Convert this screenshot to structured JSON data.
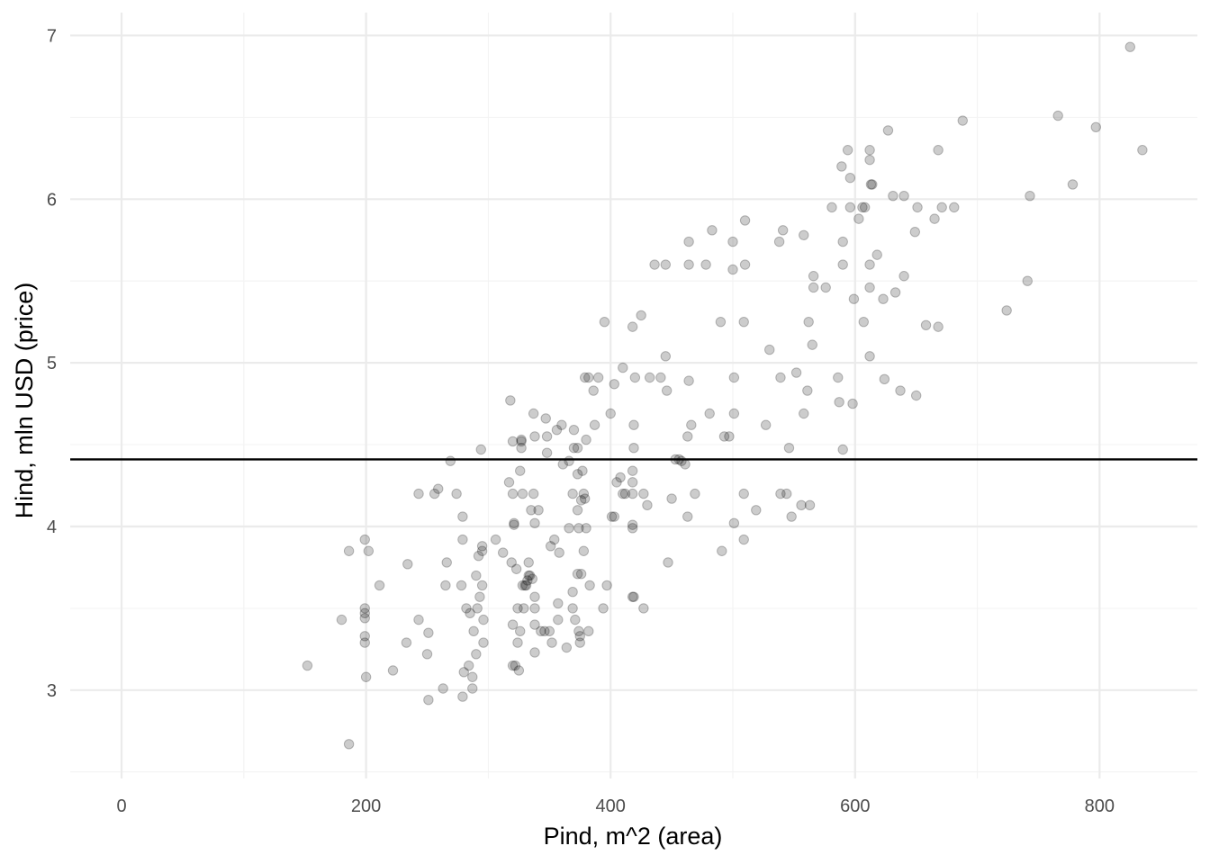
{
  "chart_data": {
    "type": "scatter",
    "title": "",
    "xlabel": "Pind, m^2 (area)",
    "ylabel": "Hind, mln USD (price)",
    "xlim": [
      -42,
      880
    ],
    "ylim": [
      2.46,
      7.14
    ],
    "x_major_ticks": [
      0,
      200,
      400,
      600,
      800
    ],
    "x_minor_ticks": [
      100,
      300,
      500,
      700
    ],
    "y_major_ticks": [
      3,
      4,
      5,
      6,
      7
    ],
    "y_minor_ticks": [
      2.5,
      3.5,
      4.5,
      5.5,
      6.5
    ],
    "x_tick_labels": [
      "0",
      "200",
      "400",
      "600",
      "800"
    ],
    "y_tick_labels": [
      "3",
      "4",
      "5",
      "6",
      "7"
    ],
    "grid": true,
    "legend": "none",
    "hline": {
      "y": 4.41,
      "color": "#000000"
    },
    "point_color": "#000000",
    "point_opacity": 0.2,
    "points": [
      [
        152,
        3.15
      ],
      [
        180,
        3.43
      ],
      [
        186,
        3.85
      ],
      [
        186,
        2.67
      ],
      [
        199,
        3.5
      ],
      [
        199,
        3.47
      ],
      [
        199,
        3.44
      ],
      [
        199,
        3.33
      ],
      [
        199,
        3.29
      ],
      [
        199,
        3.92
      ],
      [
        200,
        3.08
      ],
      [
        202,
        3.85
      ],
      [
        211,
        3.64
      ],
      [
        222,
        3.12
      ],
      [
        233,
        3.29
      ],
      [
        234,
        3.77
      ],
      [
        243,
        4.2
      ],
      [
        243,
        3.43
      ],
      [
        250,
        3.22
      ],
      [
        251,
        3.35
      ],
      [
        251,
        2.94
      ],
      [
        256,
        4.2
      ],
      [
        259,
        4.23
      ],
      [
        263,
        3.01
      ],
      [
        265,
        3.64
      ],
      [
        266,
        3.78
      ],
      [
        269,
        4.4
      ],
      [
        274,
        4.2
      ],
      [
        278,
        3.64
      ],
      [
        279,
        4.06
      ],
      [
        279,
        3.92
      ],
      [
        280,
        3.11
      ],
      [
        279,
        2.96
      ],
      [
        282,
        3.5
      ],
      [
        284,
        3.15
      ],
      [
        285,
        3.47
      ],
      [
        287,
        3.08
      ],
      [
        287,
        3.01
      ],
      [
        288,
        3.36
      ],
      [
        290,
        3.22
      ],
      [
        290,
        3.7
      ],
      [
        291,
        3.5
      ],
      [
        292,
        3.82
      ],
      [
        293,
        3.57
      ],
      [
        294,
        4.47
      ],
      [
        295,
        3.64
      ],
      [
        295,
        3.88
      ],
      [
        295,
        3.85
      ],
      [
        296,
        3.43
      ],
      [
        296,
        3.29
      ],
      [
        306,
        3.92
      ],
      [
        312,
        3.84
      ],
      [
        317,
        4.27
      ],
      [
        318,
        4.77
      ],
      [
        319,
        3.78
      ],
      [
        320,
        4.52
      ],
      [
        320,
        4.2
      ],
      [
        320,
        3.4
      ],
      [
        320,
        3.15
      ],
      [
        321,
        4.02
      ],
      [
        321,
        4.01
      ],
      [
        322,
        3.15
      ],
      [
        323,
        3.74
      ],
      [
        324,
        3.5
      ],
      [
        324,
        3.29
      ],
      [
        325,
        3.12
      ],
      [
        326,
        4.34
      ],
      [
        326,
        3.36
      ],
      [
        327,
        4.52
      ],
      [
        327,
        4.53
      ],
      [
        327,
        4.48
      ],
      [
        328,
        4.2
      ],
      [
        328,
        3.64
      ],
      [
        329,
        3.5
      ],
      [
        330,
        3.64
      ],
      [
        331,
        3.64
      ],
      [
        332,
        3.67
      ],
      [
        333,
        3.7
      ],
      [
        333,
        3.78
      ],
      [
        334,
        3.7
      ],
      [
        335,
        4.1
      ],
      [
        336,
        3.68
      ],
      [
        337,
        4.69
      ],
      [
        337,
        4.2
      ],
      [
        338,
        4.55
      ],
      [
        338,
        4.02
      ],
      [
        338,
        3.57
      ],
      [
        338,
        3.5
      ],
      [
        338,
        3.4
      ],
      [
        338,
        3.23
      ],
      [
        341,
        4.1
      ],
      [
        343,
        3.36
      ],
      [
        346,
        3.36
      ],
      [
        347,
        4.66
      ],
      [
        348,
        4.55
      ],
      [
        348,
        4.45
      ],
      [
        350,
        3.36
      ],
      [
        351,
        3.88
      ],
      [
        352,
        3.29
      ],
      [
        354,
        3.92
      ],
      [
        356,
        4.59
      ],
      [
        357,
        3.53
      ],
      [
        357,
        3.43
      ],
      [
        358,
        3.84
      ],
      [
        360,
        4.62
      ],
      [
        361,
        4.38
      ],
      [
        364,
        3.26
      ],
      [
        366,
        4.4
      ],
      [
        366,
        3.99
      ],
      [
        369,
        4.2
      ],
      [
        369,
        3.6
      ],
      [
        369,
        3.5
      ],
      [
        370,
        4.59
      ],
      [
        370,
        4.48
      ],
      [
        371,
        3.43
      ],
      [
        373,
        4.48
      ],
      [
        373,
        4.32
      ],
      [
        373,
        4.1
      ],
      [
        373,
        3.71
      ],
      [
        374,
        3.99
      ],
      [
        374,
        3.36
      ],
      [
        375,
        3.33
      ],
      [
        375,
        3.29
      ],
      [
        376,
        4.16
      ],
      [
        376,
        3.71
      ],
      [
        377,
        4.34
      ],
      [
        378,
        4.2
      ],
      [
        378,
        3.85
      ],
      [
        379,
        4.91
      ],
      [
        379,
        4.17
      ],
      [
        380,
        4.53
      ],
      [
        380,
        3.99
      ],
      [
        382,
        4.91
      ],
      [
        382,
        3.36
      ],
      [
        383,
        3.64
      ],
      [
        386,
        4.83
      ],
      [
        387,
        4.62
      ],
      [
        390,
        4.91
      ],
      [
        394,
        3.5
      ],
      [
        395,
        5.25
      ],
      [
        397,
        3.64
      ],
      [
        400,
        4.69
      ],
      [
        401,
        4.06
      ],
      [
        403,
        4.06
      ],
      [
        403,
        4.87
      ],
      [
        405,
        4.27
      ],
      [
        408,
        4.3
      ],
      [
        410,
        4.97
      ],
      [
        410,
        4.2
      ],
      [
        412,
        4.2
      ],
      [
        418,
        5.22
      ],
      [
        418,
        4.34
      ],
      [
        418,
        4.27
      ],
      [
        418,
        4.2
      ],
      [
        418,
        4.01
      ],
      [
        418,
        3.99
      ],
      [
        418,
        3.57
      ],
      [
        419,
        3.57
      ],
      [
        419,
        4.62
      ],
      [
        419,
        4.48
      ],
      [
        420,
        4.91
      ],
      [
        425,
        5.29
      ],
      [
        427,
        4.2
      ],
      [
        427,
        3.5
      ],
      [
        430,
        4.13
      ],
      [
        432,
        4.91
      ],
      [
        436,
        5.6
      ],
      [
        441,
        4.91
      ],
      [
        445,
        5.6
      ],
      [
        445,
        5.04
      ],
      [
        446,
        4.83
      ],
      [
        447,
        3.78
      ],
      [
        450,
        4.17
      ],
      [
        453,
        4.41
      ],
      [
        456,
        4.41
      ],
      [
        458,
        4.4
      ],
      [
        461,
        4.38
      ],
      [
        463,
        4.55
      ],
      [
        463,
        4.06
      ],
      [
        464,
        4.89
      ],
      [
        464,
        5.74
      ],
      [
        464,
        5.6
      ],
      [
        466,
        4.62
      ],
      [
        469,
        4.2
      ],
      [
        478,
        5.6
      ],
      [
        481,
        4.69
      ],
      [
        483,
        5.81
      ],
      [
        490,
        5.25
      ],
      [
        491,
        3.85
      ],
      [
        493,
        4.55
      ],
      [
        497,
        4.55
      ],
      [
        500,
        5.74
      ],
      [
        500,
        5.57
      ],
      [
        501,
        4.91
      ],
      [
        501,
        4.69
      ],
      [
        501,
        4.02
      ],
      [
        509,
        5.25
      ],
      [
        509,
        4.2
      ],
      [
        509,
        3.92
      ],
      [
        510,
        5.87
      ],
      [
        510,
        5.6
      ],
      [
        519,
        4.1
      ],
      [
        527,
        4.62
      ],
      [
        530,
        5.08
      ],
      [
        538,
        5.74
      ],
      [
        539,
        4.91
      ],
      [
        539,
        4.2
      ],
      [
        541,
        5.81
      ],
      [
        544,
        4.2
      ],
      [
        546,
        4.48
      ],
      [
        548,
        4.06
      ],
      [
        552,
        4.94
      ],
      [
        556,
        4.13
      ],
      [
        558,
        5.78
      ],
      [
        558,
        4.69
      ],
      [
        561,
        4.83
      ],
      [
        562,
        5.25
      ],
      [
        563,
        4.13
      ],
      [
        565,
        5.11
      ],
      [
        566,
        5.53
      ],
      [
        566,
        5.46
      ],
      [
        576,
        5.46
      ],
      [
        581,
        5.95
      ],
      [
        586,
        4.91
      ],
      [
        587,
        4.76
      ],
      [
        589,
        6.2
      ],
      [
        590,
        5.74
      ],
      [
        590,
        5.6
      ],
      [
        590,
        4.47
      ],
      [
        594,
        6.3
      ],
      [
        596,
        6.13
      ],
      [
        596,
        5.95
      ],
      [
        598,
        4.75
      ],
      [
        599,
        5.39
      ],
      [
        603,
        5.88
      ],
      [
        606,
        5.95
      ],
      [
        607,
        5.25
      ],
      [
        608,
        5.95
      ],
      [
        612,
        6.3
      ],
      [
        612,
        6.24
      ],
      [
        612,
        5.6
      ],
      [
        612,
        5.46
      ],
      [
        612,
        5.04
      ],
      [
        613,
        6.09
      ],
      [
        614,
        6.09
      ],
      [
        618,
        5.66
      ],
      [
        623,
        5.39
      ],
      [
        624,
        4.9
      ],
      [
        627,
        6.42
      ],
      [
        631,
        6.02
      ],
      [
        633,
        5.43
      ],
      [
        637,
        4.83
      ],
      [
        640,
        6.02
      ],
      [
        640,
        5.53
      ],
      [
        649,
        5.8
      ],
      [
        650,
        4.8
      ],
      [
        651,
        5.95
      ],
      [
        658,
        5.23
      ],
      [
        665,
        5.88
      ],
      [
        668,
        6.3
      ],
      [
        668,
        5.22
      ],
      [
        671,
        5.95
      ],
      [
        681,
        5.95
      ],
      [
        688,
        6.48
      ],
      [
        724,
        5.32
      ],
      [
        741,
        5.5
      ],
      [
        743,
        6.02
      ],
      [
        766,
        6.51
      ],
      [
        778,
        6.09
      ],
      [
        797,
        6.44
      ],
      [
        825,
        6.93
      ],
      [
        835,
        6.3
      ]
    ]
  }
}
